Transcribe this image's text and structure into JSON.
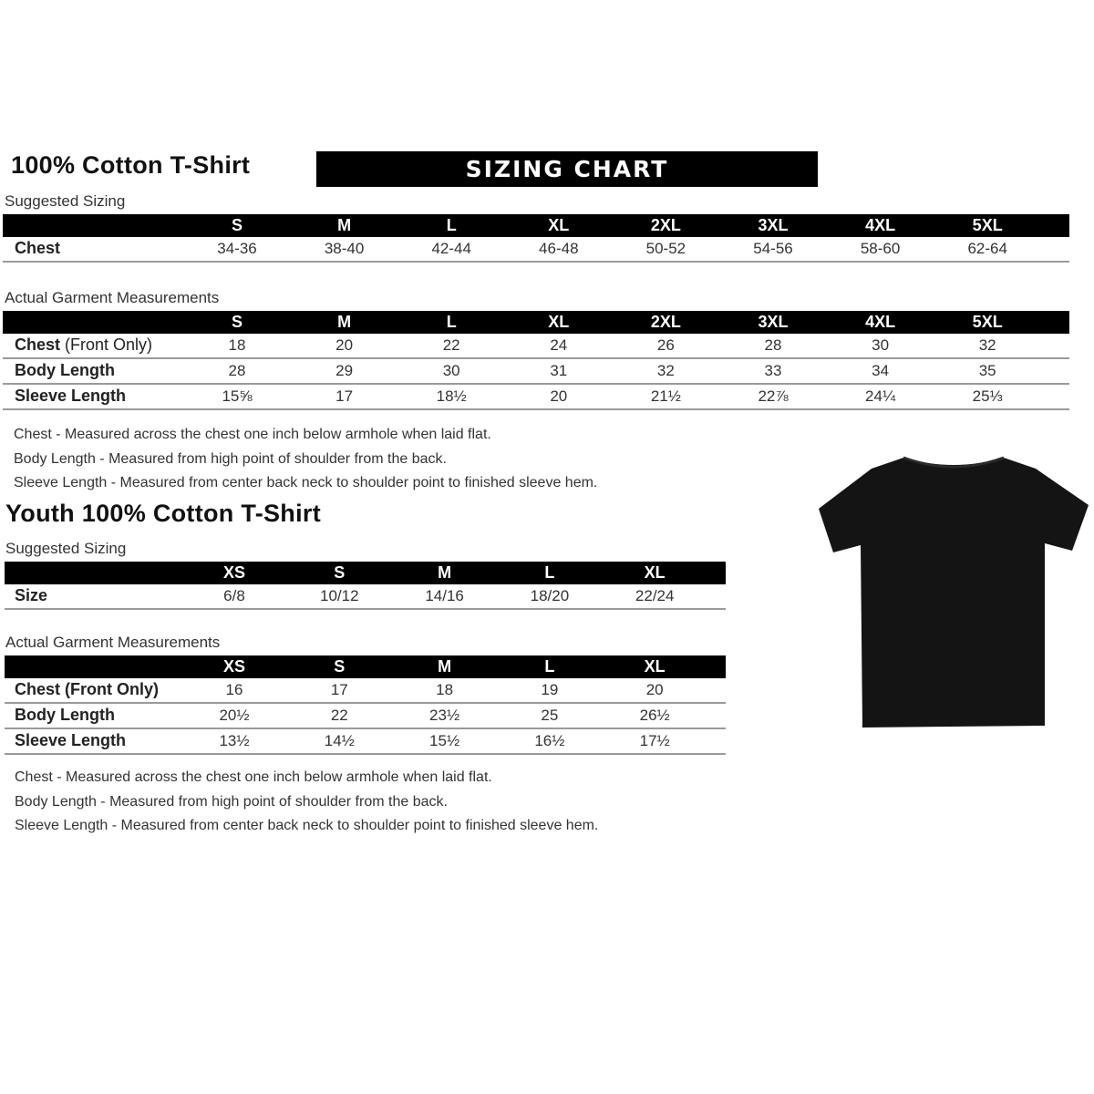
{
  "banner": "SIZING CHART",
  "adult": {
    "title": "100% Cotton T-Shirt",
    "suggested_label": "Suggested Sizing",
    "sizes": [
      "S",
      "M",
      "L",
      "XL",
      "2XL",
      "3XL",
      "4XL",
      "5XL"
    ],
    "suggested_rows": [
      {
        "label": "Chest",
        "label_light": "",
        "values": [
          "34-36",
          "38-40",
          "42-44",
          "46-48",
          "50-52",
          "54-56",
          "58-60",
          "62-64"
        ]
      }
    ],
    "actual_label": "Actual Garment Measurements",
    "actual_rows": [
      {
        "label": "Chest",
        "label_light": " (Front Only)",
        "values": [
          "18",
          "20",
          "22",
          "24",
          "26",
          "28",
          "30",
          "32"
        ]
      },
      {
        "label": "Body Length",
        "label_light": "",
        "values": [
          "28",
          "29",
          "30",
          "31",
          "32",
          "33",
          "34",
          "35"
        ]
      },
      {
        "label": "Sleeve Length",
        "label_light": "",
        "values": [
          "15⅝",
          "17",
          "18½",
          "20",
          "21½",
          "22⅞",
          "24¼",
          "25⅓"
        ]
      }
    ],
    "notes": [
      "Chest - Measured across the chest one inch below armhole when laid flat.",
      "Body Length - Measured from high point of shoulder from the back.",
      "Sleeve Length - Measured from center back neck to shoulder point to finished sleeve hem."
    ]
  },
  "youth": {
    "title": "Youth 100% Cotton T-Shirt",
    "suggested_label": "Suggested Sizing",
    "sizes": [
      "XS",
      "S",
      "M",
      "L",
      "XL"
    ],
    "suggested_rows": [
      {
        "label": "Size",
        "label_light": "",
        "values": [
          "6/8",
          "10/12",
          "14/16",
          "18/20",
          "22/24"
        ]
      }
    ],
    "actual_label": "Actual Garment Measurements",
    "actual_rows": [
      {
        "label": "Chest (Front Only)",
        "label_light": "",
        "values": [
          "16",
          "17",
          "18",
          "19",
          "20"
        ]
      },
      {
        "label": "Body Length",
        "label_light": "",
        "values": [
          "20½",
          "22",
          "23½",
          "25",
          "26½"
        ]
      },
      {
        "label": "Sleeve Length",
        "label_light": "",
        "values": [
          "13½",
          "14½",
          "15½",
          "16½",
          "17½"
        ]
      }
    ],
    "notes": [
      "Chest - Measured across the chest one inch below armhole when laid flat.",
      "Body Length - Measured from high point of shoulder from the back.",
      "Sleeve Length - Measured from center back neck to shoulder point to finished sleeve hem."
    ]
  },
  "image": {
    "name": "black-tshirt",
    "color": "#111111"
  }
}
